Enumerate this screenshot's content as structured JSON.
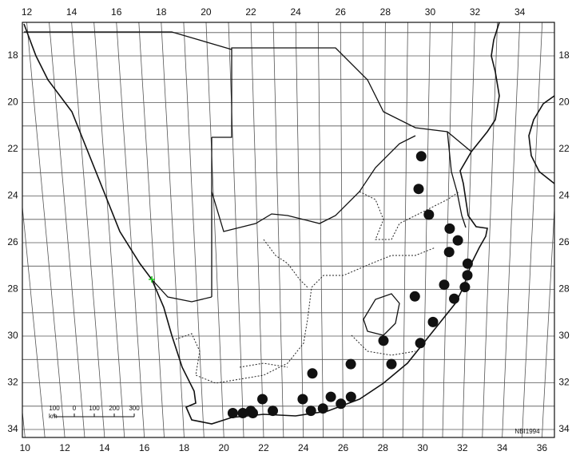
{
  "map": {
    "top_labels": [
      12,
      14,
      16,
      18,
      20,
      22,
      24,
      26,
      28,
      30,
      32,
      34
    ],
    "bottom_labels": [
      10,
      12,
      14,
      16,
      18,
      20,
      22,
      24,
      26,
      28,
      30,
      32,
      34,
      36
    ],
    "left_labels": [
      18,
      20,
      22,
      24,
      26,
      28,
      30,
      32,
      34
    ],
    "right_labels": [
      18,
      20,
      22,
      24,
      26,
      28,
      30,
      32,
      34
    ],
    "scale_bar": {
      "unit": "km",
      "labels": [
        100,
        0,
        100,
        200,
        300
      ]
    },
    "credit": "NBI1994",
    "records": [
      {
        "lon": 29.7,
        "lat": 22.3
      },
      {
        "lon": 29.6,
        "lat": 23.7
      },
      {
        "lon": 30.1,
        "lat": 24.8
      },
      {
        "lon": 31.1,
        "lat": 25.4
      },
      {
        "lon": 31.5,
        "lat": 25.9
      },
      {
        "lon": 31.1,
        "lat": 26.4
      },
      {
        "lon": 32.0,
        "lat": 26.9
      },
      {
        "lon": 32.0,
        "lat": 27.4
      },
      {
        "lon": 31.9,
        "lat": 27.9
      },
      {
        "lon": 30.9,
        "lat": 27.8
      },
      {
        "lon": 31.4,
        "lat": 28.4
      },
      {
        "lon": 29.5,
        "lat": 28.3
      },
      {
        "lon": 30.4,
        "lat": 29.4
      },
      {
        "lon": 29.8,
        "lat": 30.3
      },
      {
        "lon": 28.0,
        "lat": 30.2
      },
      {
        "lon": 28.4,
        "lat": 31.2
      },
      {
        "lon": 26.4,
        "lat": 31.2
      },
      {
        "lon": 24.5,
        "lat": 31.6
      },
      {
        "lon": 22.0,
        "lat": 32.7
      },
      {
        "lon": 21.4,
        "lat": 33.2
      },
      {
        "lon": 20.5,
        "lat": 33.3
      },
      {
        "lon": 21.0,
        "lat": 33.3
      },
      {
        "lon": 21.5,
        "lat": 33.3
      },
      {
        "lon": 22.5,
        "lat": 33.2
      },
      {
        "lon": 24.0,
        "lat": 32.7
      },
      {
        "lon": 24.4,
        "lat": 33.2
      },
      {
        "lon": 25.0,
        "lat": 33.1
      },
      {
        "lon": 25.4,
        "lat": 32.6
      },
      {
        "lon": 25.9,
        "lat": 32.9
      },
      {
        "lon": 26.4,
        "lat": 32.6
      }
    ]
  }
}
